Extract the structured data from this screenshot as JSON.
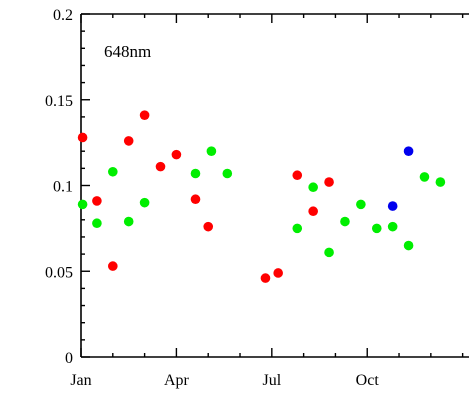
{
  "chart_data": {
    "type": "scatter",
    "annotation": "648nm",
    "x_ticks": [
      "Jan",
      "Apr",
      "Jul",
      "Oct"
    ],
    "x_tick_months": [
      1,
      4,
      7,
      10
    ],
    "xlim": [
      1,
      13.2
    ],
    "ylim": [
      0,
      0.2
    ],
    "y_ticks": [
      0,
      0.05,
      0.1,
      0.15,
      0.2
    ],
    "y_tick_labels": [
      "0",
      "0.05",
      "0.1",
      "0.15",
      "0.2"
    ],
    "grid": false,
    "series": [
      {
        "color": "#ff0000",
        "points": [
          [
            1.05,
            0.128
          ],
          [
            1.5,
            0.091
          ],
          [
            2.0,
            0.053
          ],
          [
            2.5,
            0.126
          ],
          [
            3.0,
            0.141
          ],
          [
            3.5,
            0.111
          ],
          [
            4.0,
            0.118
          ],
          [
            4.6,
            0.092
          ],
          [
            5.0,
            0.076
          ],
          [
            6.8,
            0.046
          ],
          [
            7.2,
            0.049
          ],
          [
            7.8,
            0.106
          ],
          [
            8.3,
            0.085
          ],
          [
            8.8,
            0.102
          ]
        ]
      },
      {
        "color": "#00ee00",
        "points": [
          [
            1.05,
            0.089
          ],
          [
            1.5,
            0.078
          ],
          [
            2.0,
            0.108
          ],
          [
            2.5,
            0.079
          ],
          [
            3.0,
            0.09
          ],
          [
            4.6,
            0.107
          ],
          [
            5.1,
            0.12
          ],
          [
            5.6,
            0.107
          ],
          [
            7.8,
            0.075
          ],
          [
            8.3,
            0.099
          ],
          [
            8.8,
            0.061
          ],
          [
            9.3,
            0.079
          ],
          [
            9.8,
            0.089
          ],
          [
            10.3,
            0.075
          ],
          [
            10.8,
            0.076
          ],
          [
            11.3,
            0.065
          ],
          [
            11.8,
            0.105
          ],
          [
            12.3,
            0.102
          ]
        ]
      },
      {
        "color": "#0000ee",
        "points": [
          [
            10.8,
            0.088
          ],
          [
            11.3,
            0.12
          ]
        ]
      }
    ]
  }
}
